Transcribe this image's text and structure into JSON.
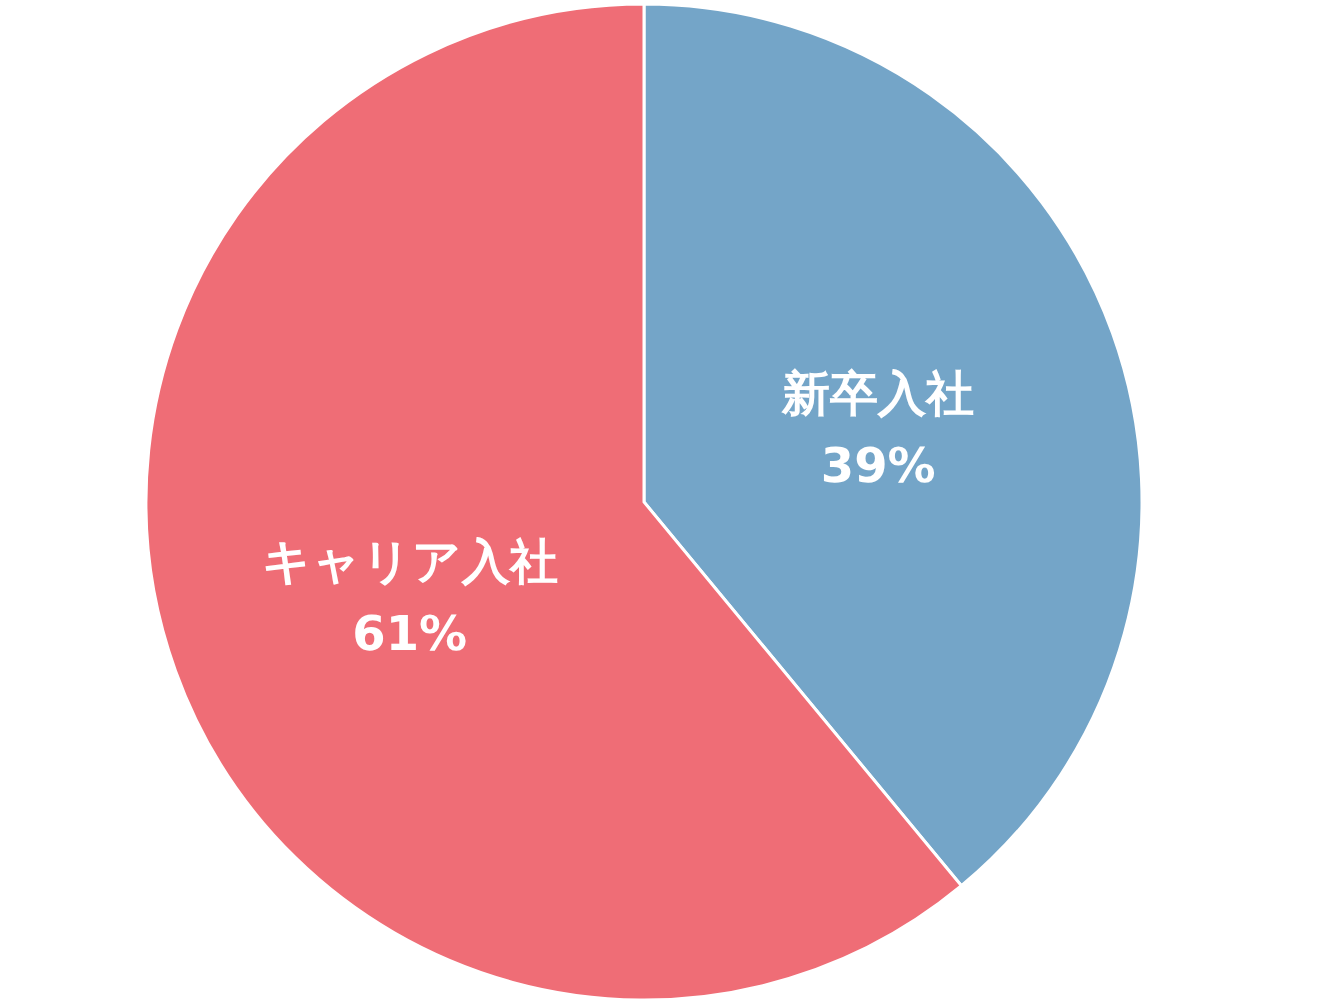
{
  "chart_data": {
    "type": "pie",
    "categories": [
      "新卒入社",
      "キャリア入社"
    ],
    "values": [
      39,
      61
    ],
    "colors": [
      "#74a5c8",
      "#ef6d76"
    ],
    "value_labels": [
      "39%",
      "61%"
    ]
  }
}
